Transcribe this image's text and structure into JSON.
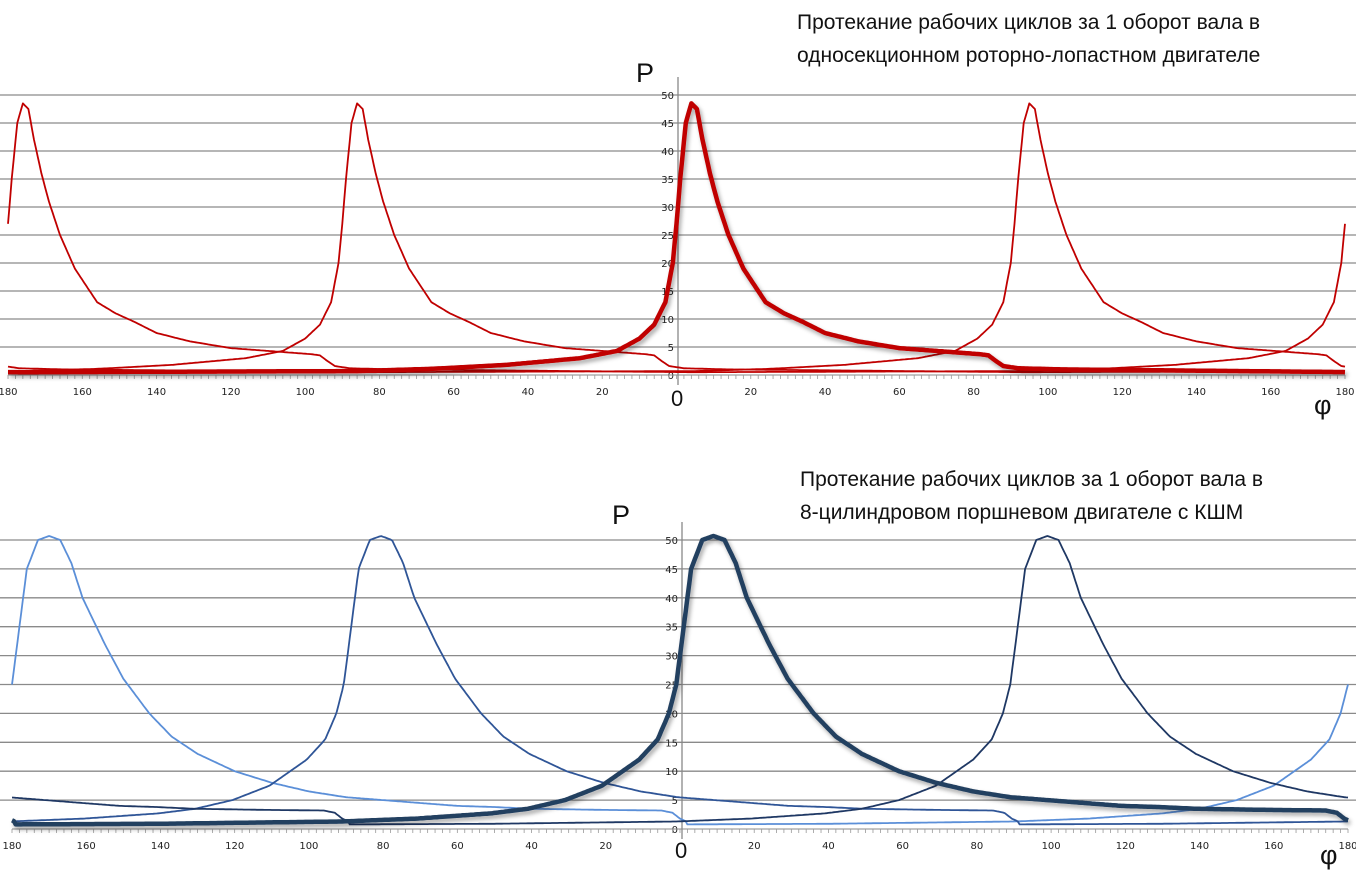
{
  "chart_data": [
    {
      "type": "line",
      "title_lines": [
        "Протекание рабочих циклов за 1 оборот вала в",
        "односекционном роторно-лопастном двигателе"
      ],
      "ylabel": "P",
      "xlabel": "φ",
      "origin_label": "0",
      "xlim": [
        -180,
        180
      ],
      "x_tick_labels_abs": [
        180,
        160,
        140,
        120,
        100,
        80,
        60,
        40,
        20
      ],
      "ylim": [
        0,
        50
      ],
      "y_ticks": [
        0,
        5,
        10,
        15,
        20,
        25,
        30,
        35,
        40,
        45,
        50
      ],
      "grid": true,
      "pulse_profile": [
        [
          -180,
          0.5
        ],
        [
          -90,
          0.7
        ],
        [
          -70,
          1.1
        ],
        [
          -50,
          1.8
        ],
        [
          -30,
          3
        ],
        [
          -20,
          4.3
        ],
        [
          -14,
          6.5
        ],
        [
          -10,
          9
        ],
        [
          -7,
          13
        ],
        [
          -5,
          20
        ],
        [
          -4,
          27
        ],
        [
          -3,
          35
        ],
        [
          -1.5,
          45
        ],
        [
          0,
          48.5
        ],
        [
          1.5,
          47.5
        ],
        [
          3,
          42
        ],
        [
          5,
          36
        ],
        [
          7,
          31
        ],
        [
          10,
          25
        ],
        [
          14,
          19
        ],
        [
          20,
          13
        ],
        [
          25,
          11
        ],
        [
          30,
          9.5
        ],
        [
          36,
          7.5
        ],
        [
          45,
          6
        ],
        [
          56,
          4.8
        ],
        [
          70,
          4.1
        ],
        [
          78,
          3.7
        ],
        [
          80,
          3.5
        ],
        [
          82,
          2.5
        ],
        [
          84,
          1.6
        ],
        [
          88,
          1.2
        ],
        [
          100,
          1
        ],
        [
          180,
          0.5
        ]
      ],
      "series": [
        {
          "peak_at": -176,
          "color": "#c00000",
          "emphasis": false
        },
        {
          "peak_at": -86,
          "color": "#c00000",
          "emphasis": false
        },
        {
          "peak_at": 95,
          "color": "#c00000",
          "emphasis": false
        },
        {
          "peak_at": 4,
          "color": "#c00000",
          "emphasis": true
        }
      ]
    },
    {
      "type": "line",
      "title_lines": [
        "Протекание рабочих циклов за 1 оборот вала в",
        "8-цилиндровом поршневом двигателе с КШМ"
      ],
      "ylabel": "P",
      "xlabel": "φ",
      "origin_label": "0",
      "xlim": [
        -180,
        180
      ],
      "x_tick_labels_abs": [
        180,
        160,
        140,
        120,
        100,
        80,
        60,
        40,
        20
      ],
      "ylim": [
        0,
        50
      ],
      "y_ticks": [
        0,
        5,
        10,
        15,
        20,
        25,
        30,
        35,
        40,
        45,
        50
      ],
      "grid": true,
      "pulse_profile": [
        [
          -188,
          0.8
        ],
        [
          -150,
          0.9
        ],
        [
          -100,
          1.3
        ],
        [
          -80,
          1.8
        ],
        [
          -60,
          2.7
        ],
        [
          -50,
          3.5
        ],
        [
          -40,
          5
        ],
        [
          -30,
          7.5
        ],
        [
          -20,
          12
        ],
        [
          -15,
          15.5
        ],
        [
          -12,
          20
        ],
        [
          -10,
          25
        ],
        [
          -9,
          30
        ],
        [
          -8,
          35
        ],
        [
          -7,
          40
        ],
        [
          -6,
          45
        ],
        [
          -3,
          50
        ],
        [
          0,
          50.7
        ],
        [
          3,
          50
        ],
        [
          6,
          46
        ],
        [
          9,
          40
        ],
        [
          15,
          32
        ],
        [
          20,
          26
        ],
        [
          27,
          20
        ],
        [
          33,
          16
        ],
        [
          40,
          13
        ],
        [
          50,
          10
        ],
        [
          60,
          8
        ],
        [
          70,
          6.5
        ],
        [
          80,
          5.5
        ],
        [
          90,
          5
        ],
        [
          100,
          4.5
        ],
        [
          110,
          4
        ],
        [
          120,
          3.8
        ],
        [
          130,
          3.5
        ],
        [
          150,
          3.3
        ],
        [
          165,
          3.2
        ],
        [
          168,
          2.8
        ],
        [
          170,
          1.8
        ],
        [
          172,
          1.2
        ]
      ],
      "series": [
        {
          "peak_at": -170,
          "color": "#5b8fd8",
          "emphasis": false
        },
        {
          "peak_at": -80.6,
          "color": "#2f5597",
          "emphasis": false
        },
        {
          "peak_at": 99,
          "color": "#1f3864",
          "emphasis": false
        },
        {
          "peak_at": 9,
          "color": "#243f60",
          "emphasis": true
        }
      ]
    }
  ]
}
